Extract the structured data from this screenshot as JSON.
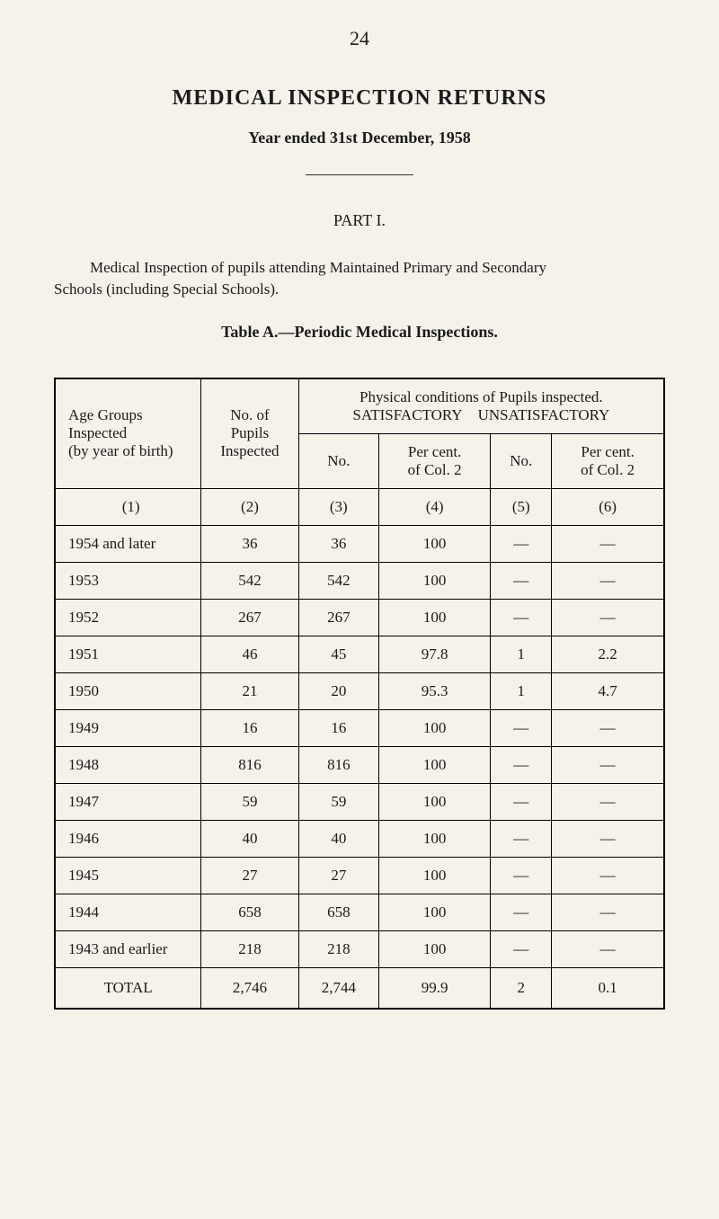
{
  "page_number": "24",
  "title": "MEDICAL INSPECTION RETURNS",
  "subtitle": "Year ended 31st December, 1958",
  "part_title": "PART I.",
  "description_line1": "Medical Inspection of pupils attending Maintained Primary and Secondary",
  "description_line2": "Schools (including Special Schools).",
  "table_caption": "Table A.—Periodic Medical Inspections.",
  "headers": {
    "age_groups": "Age Groups Inspected (by year of birth)",
    "no_pupils": "No. of Pupils Inspected",
    "phys_cond": "Physical conditions of Pupils inspected.",
    "satisfactory": "SATISFACTORY",
    "unsatisfactory": "UNSATISFACTORY",
    "no": "No.",
    "percent": "Per cent. of Col. 2",
    "col1": "(1)",
    "col2": "(2)",
    "col3": "(3)",
    "col4": "(4)",
    "col5": "(5)",
    "col6": "(6)"
  },
  "rows": [
    {
      "age": "1954 and later",
      "pupils": "36",
      "sat_no": "36",
      "sat_pct": "100",
      "unsat_no": "—",
      "unsat_pct": "—"
    },
    {
      "age": "1953",
      "pupils": "542",
      "sat_no": "542",
      "sat_pct": "100",
      "unsat_no": "—",
      "unsat_pct": "—"
    },
    {
      "age": "1952",
      "pupils": "267",
      "sat_no": "267",
      "sat_pct": "100",
      "unsat_no": "—",
      "unsat_pct": "—"
    },
    {
      "age": "1951",
      "pupils": "46",
      "sat_no": "45",
      "sat_pct": "97.8",
      "unsat_no": "1",
      "unsat_pct": "2.2"
    },
    {
      "age": "1950",
      "pupils": "21",
      "sat_no": "20",
      "sat_pct": "95.3",
      "unsat_no": "1",
      "unsat_pct": "4.7"
    },
    {
      "age": "1949",
      "pupils": "16",
      "sat_no": "16",
      "sat_pct": "100",
      "unsat_no": "—",
      "unsat_pct": "—"
    },
    {
      "age": "1948",
      "pupils": "816",
      "sat_no": "816",
      "sat_pct": "100",
      "unsat_no": "—",
      "unsat_pct": "—"
    },
    {
      "age": "1947",
      "pupils": "59",
      "sat_no": "59",
      "sat_pct": "100",
      "unsat_no": "—",
      "unsat_pct": "—"
    },
    {
      "age": "1946",
      "pupils": "40",
      "sat_no": "40",
      "sat_pct": "100",
      "unsat_no": "—",
      "unsat_pct": "—"
    },
    {
      "age": "1945",
      "pupils": "27",
      "sat_no": "27",
      "sat_pct": "100",
      "unsat_no": "—",
      "unsat_pct": "—"
    },
    {
      "age": "1944",
      "pupils": "658",
      "sat_no": "658",
      "sat_pct": "100",
      "unsat_no": "—",
      "unsat_pct": "—"
    },
    {
      "age": "1943 and earlier",
      "pupils": "218",
      "sat_no": "218",
      "sat_pct": "100",
      "unsat_no": "—",
      "unsat_pct": "—"
    }
  ],
  "total": {
    "label": "TOTAL",
    "pupils": "2,746",
    "sat_no": "2,744",
    "sat_pct": "99.9",
    "unsat_no": "2",
    "unsat_pct": "0.1"
  }
}
